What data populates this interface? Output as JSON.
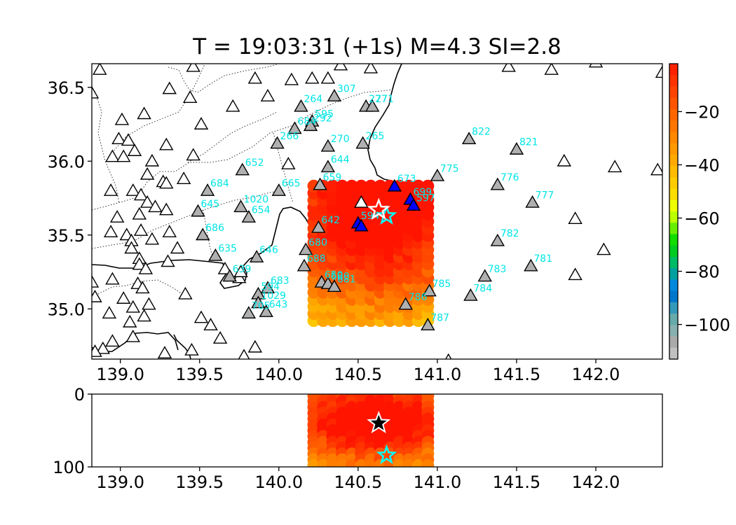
{
  "chart_data": [
    {
      "type": "scatter",
      "panel": "map",
      "title": "T = 19:03:31 (+1s) M=4.3 SI=2.8",
      "xlim": [
        138.82,
        142.42
      ],
      "ylim": [
        34.66,
        36.66
      ],
      "xticks": [
        "139.0",
        "139.5",
        "140.0",
        "140.5",
        "141.0",
        "141.5",
        "142.0"
      ],
      "xtick_values": [
        139.0,
        139.5,
        140.0,
        140.5,
        141.0,
        141.5,
        142.0
      ],
      "yticks": [
        "35.0",
        "35.5",
        "36.0",
        "36.5"
      ],
      "ytick_values": [
        35.0,
        35.5,
        36.0,
        36.5
      ],
      "grid": false,
      "grid_points": {
        "lon_range": [
          140.22,
          140.96
        ],
        "lat_range": [
          34.92,
          35.87
        ],
        "step": 0.06
      },
      "epicenter_estimate": {
        "lon": 140.63,
        "lat": 35.67,
        "marker": "star",
        "color": "#ffffff"
      },
      "epicenter_reference": {
        "lon": 140.68,
        "lat": 35.63,
        "marker": "star",
        "color": "#00ffff"
      },
      "stations_triggered": [
        {
          "label": "673",
          "lon": 140.73,
          "lat": 35.83
        },
        {
          "label": "699",
          "lon": 140.83,
          "lat": 35.74
        },
        {
          "label": "597",
          "lon": 140.85,
          "lat": 35.7
        },
        {
          "label": "594",
          "lon": 140.5,
          "lat": 35.58
        },
        {
          "label": "",
          "lon": 140.52,
          "lat": 35.56
        }
      ],
      "stations_labeled": [
        {
          "label": "264",
          "lon": 140.14,
          "lat": 36.37
        },
        {
          "label": "307",
          "lon": 140.35,
          "lat": 36.44
        },
        {
          "label": "277",
          "lon": 140.55,
          "lat": 36.37
        },
        {
          "label": "271",
          "lon": 140.59,
          "lat": 36.37
        },
        {
          "label": "595",
          "lon": 140.21,
          "lat": 36.27
        },
        {
          "label": "684",
          "lon": 140.1,
          "lat": 36.22
        },
        {
          "label": "292",
          "lon": 140.2,
          "lat": 36.24
        },
        {
          "label": "266",
          "lon": 139.99,
          "lat": 36.12
        },
        {
          "label": "270",
          "lon": 140.31,
          "lat": 36.1
        },
        {
          "label": "265",
          "lon": 140.53,
          "lat": 36.12
        },
        {
          "label": "822",
          "lon": 141.2,
          "lat": 36.15
        },
        {
          "label": "821",
          "lon": 141.5,
          "lat": 36.08
        },
        {
          "label": "652",
          "lon": 139.77,
          "lat": 35.94
        },
        {
          "label": "644",
          "lon": 140.31,
          "lat": 35.96
        },
        {
          "label": "775",
          "lon": 141.0,
          "lat": 35.9
        },
        {
          "label": "659",
          "lon": 140.26,
          "lat": 35.84
        },
        {
          "label": "665",
          "lon": 140.0,
          "lat": 35.8
        },
        {
          "label": "684",
          "lon": 139.55,
          "lat": 35.8
        },
        {
          "label": "776",
          "lon": 141.38,
          "lat": 35.84
        },
        {
          "label": "777",
          "lon": 141.6,
          "lat": 35.72
        },
        {
          "label": "1020",
          "lon": 139.76,
          "lat": 35.69
        },
        {
          "label": "645",
          "lon": 139.49,
          "lat": 35.66
        },
        {
          "label": "654",
          "lon": 139.81,
          "lat": 35.62
        },
        {
          "label": "642",
          "lon": 140.25,
          "lat": 35.55
        },
        {
          "label": "686",
          "lon": 139.52,
          "lat": 35.5
        },
        {
          "label": "782",
          "lon": 141.38,
          "lat": 35.46
        },
        {
          "label": "680",
          "lon": 140.17,
          "lat": 35.4
        },
        {
          "label": "635",
          "lon": 139.6,
          "lat": 35.36
        },
        {
          "label": "646",
          "lon": 139.86,
          "lat": 35.35
        },
        {
          "label": "688",
          "lon": 140.16,
          "lat": 35.29
        },
        {
          "label": "781",
          "lon": 141.59,
          "lat": 35.29
        },
        {
          "label": "783",
          "lon": 141.3,
          "lat": 35.22
        },
        {
          "label": "639",
          "lon": 139.69,
          "lat": 35.22
        },
        {
          "label": "650",
          "lon": 140.27,
          "lat": 35.18
        },
        {
          "label": "680",
          "lon": 140.31,
          "lat": 35.17
        },
        {
          "label": "681",
          "lon": 140.35,
          "lat": 35.15
        },
        {
          "label": "785",
          "lon": 140.95,
          "lat": 35.12
        },
        {
          "label": "683",
          "lon": 139.93,
          "lat": 35.14
        },
        {
          "label": "594",
          "lon": 139.87,
          "lat": 35.1
        },
        {
          "label": "784",
          "lon": 141.21,
          "lat": 35.09
        },
        {
          "label": "1029",
          "lon": 139.87,
          "lat": 35.04
        },
        {
          "label": "786",
          "lon": 140.8,
          "lat": 35.03
        },
        {
          "label": "705",
          "lon": 139.81,
          "lat": 34.97
        },
        {
          "label": "643",
          "lon": 139.92,
          "lat": 34.98
        },
        {
          "label": "787",
          "lon": 140.94,
          "lat": 34.89
        }
      ],
      "stations_unlabeled": [
        [
          138.87,
          36.62
        ],
        [
          138.82,
          36.46
        ],
        [
          139.01,
          36.28
        ],
        [
          138.99,
          36.15
        ],
        [
          139.15,
          36.32
        ],
        [
          139.31,
          36.49
        ],
        [
          139.44,
          36.43
        ],
        [
          139.46,
          36.64
        ],
        [
          139.71,
          36.37
        ],
        [
          139.85,
          36.56
        ],
        [
          139.93,
          36.44
        ],
        [
          140.08,
          36.55
        ],
        [
          140.21,
          36.56
        ],
        [
          140.31,
          36.56
        ],
        [
          140.39,
          36.65
        ],
        [
          140.58,
          36.63
        ],
        [
          140.06,
          35.98
        ],
        [
          139.05,
          36.14
        ],
        [
          139.09,
          36.07
        ],
        [
          138.95,
          36.03
        ],
        [
          139.02,
          36.03
        ],
        [
          139.17,
          35.91
        ],
        [
          139.2,
          36.0
        ],
        [
          139.29,
          36.11
        ],
        [
          139.27,
          35.86
        ],
        [
          139.29,
          35.85
        ],
        [
          139.4,
          35.88
        ],
        [
          139.46,
          36.04
        ],
        [
          139.51,
          36.25
        ],
        [
          138.94,
          35.8
        ],
        [
          139.08,
          35.8
        ],
        [
          139.13,
          35.77
        ],
        [
          139.17,
          35.72
        ],
        [
          139.22,
          35.69
        ],
        [
          139.12,
          35.64
        ],
        [
          138.98,
          35.62
        ],
        [
          139.29,
          35.67
        ],
        [
          139.13,
          35.53
        ],
        [
          139.04,
          35.5
        ],
        [
          138.94,
          35.52
        ],
        [
          139.07,
          35.46
        ],
        [
          139.07,
          35.41
        ],
        [
          139.2,
          35.47
        ],
        [
          139.31,
          35.52
        ],
        [
          139.36,
          35.41
        ],
        [
          139.3,
          35.32
        ],
        [
          139.12,
          35.34
        ],
        [
          139.12,
          35.3
        ],
        [
          139.16,
          35.27
        ],
        [
          139.11,
          35.17
        ],
        [
          139.14,
          35.14
        ],
        [
          138.95,
          35.2
        ],
        [
          138.82,
          35.18
        ],
        [
          138.84,
          35.08
        ],
        [
          139.02,
          35.07
        ],
        [
          139.08,
          35.01
        ],
        [
          138.93,
          34.97
        ],
        [
          139.06,
          34.91
        ],
        [
          139.15,
          34.95
        ],
        [
          139.18,
          35.03
        ],
        [
          139.08,
          34.81
        ],
        [
          138.95,
          34.78
        ],
        [
          138.89,
          34.73
        ],
        [
          138.84,
          34.71
        ],
        [
          139.28,
          34.7
        ],
        [
          139.45,
          34.72
        ],
        [
          139.63,
          34.8
        ],
        [
          139.57,
          34.89
        ],
        [
          139.51,
          34.94
        ],
        [
          139.41,
          35.1
        ],
        [
          139.66,
          35.27
        ],
        [
          139.75,
          35.21
        ],
        [
          139.76,
          35.25
        ],
        [
          139.85,
          34.74
        ],
        [
          139.78,
          34.68
        ],
        [
          140.52,
          35.72
        ],
        [
          141.07,
          34.65
        ],
        [
          141.45,
          36.64
        ],
        [
          141.72,
          36.62
        ],
        [
          141.8,
          36.0
        ],
        [
          142.12,
          35.96
        ],
        [
          142.39,
          35.94
        ],
        [
          141.87,
          35.61
        ],
        [
          142.05,
          35.4
        ],
        [
          141.87,
          35.23
        ],
        [
          142.42,
          36.6
        ],
        [
          142.0,
          36.67
        ]
      ]
    },
    {
      "type": "scatter",
      "panel": "depth",
      "xlim": [
        138.82,
        142.42
      ],
      "ylim": [
        100,
        0
      ],
      "xticks": [
        "139.0",
        "139.5",
        "140.0",
        "140.5",
        "141.0",
        "141.5",
        "142.0"
      ],
      "xtick_values": [
        139.0,
        139.5,
        140.0,
        140.5,
        141.0,
        141.5,
        142.0
      ],
      "yticks": [
        "0",
        "100"
      ],
      "ytick_values": [
        0,
        100
      ],
      "depth_range": [
        0,
        100
      ],
      "epicenter_estimate": {
        "lon": 140.63,
        "depth": 40,
        "color": "#000000"
      },
      "epicenter_reference": {
        "lon": 140.68,
        "depth": 84,
        "color": "#00ffff"
      }
    }
  ],
  "colorbar": {
    "ticks": [
      "−20",
      "−40",
      "−60",
      "−80",
      "−100"
    ],
    "tick_values": [
      -20,
      -40,
      -60,
      -80,
      -100
    ],
    "range": [
      -113,
      -2
    ],
    "colors_top_to_bottom": [
      "#ff2200",
      "#ff3300",
      "#ff4400",
      "#ff5500",
      "#ff6600",
      "#ff7700",
      "#ff8800",
      "#ff9900",
      "#ffaa00",
      "#ffbb00",
      "#ffcc00",
      "#ffdd00",
      "#eeff00",
      "#bbff00",
      "#66ee00",
      "#11dd00",
      "#00cc22",
      "#00bb66",
      "#00a0a0",
      "#0088dd",
      "#0077cc",
      "#3399bb",
      "#66aaaa",
      "#88b0b0",
      "#aaaaaa",
      "#c0c0c0"
    ]
  },
  "colors": {
    "station_triggered": "#0000ff",
    "station_labeled": "#b0b0b0",
    "station_unlabeled": "#ffffff",
    "station_label_text": "#00e5e5"
  }
}
